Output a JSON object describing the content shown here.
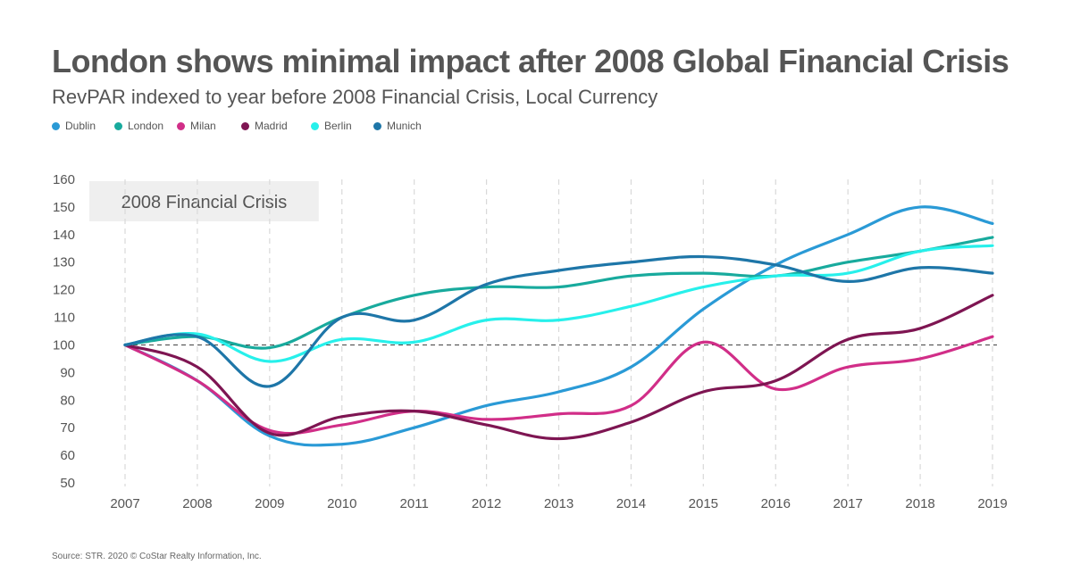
{
  "header": {
    "title": "London shows minimal impact after 2008 Global Financial Crisis",
    "subtitle": "RevPAR indexed to year before 2008 Financial Crisis, Local Currency"
  },
  "source": "Source: STR. 2020 © CoStar Realty Information, Inc.",
  "chart_data": {
    "type": "line",
    "title": "London shows minimal impact after 2008 Global Financial Crisis",
    "subtitle": "RevPAR indexed to year before 2008 Financial Crisis, Local Currency",
    "xlabel": "",
    "ylabel": "",
    "x": [
      "2007",
      "2008",
      "2009",
      "2010",
      "2011",
      "2012",
      "2013",
      "2014",
      "2015",
      "2016",
      "2017",
      "2018",
      "2019"
    ],
    "ylim": [
      50,
      160
    ],
    "yticks": [
      50,
      60,
      70,
      80,
      90,
      100,
      110,
      120,
      130,
      140,
      150,
      160
    ],
    "grid": "vertical dashed",
    "reference_line": 100,
    "legend_position": "top-left",
    "annotation": {
      "text": "2008 Financial Crisis",
      "x_start": "2007",
      "x_end": "2009"
    },
    "series": [
      {
        "name": "Dublin",
        "color": "#2a9ad6",
        "values": [
          100,
          87,
          67,
          64,
          70,
          78,
          83,
          92,
          113,
          129,
          140,
          150,
          144
        ]
      },
      {
        "name": "London",
        "color": "#18aa9d",
        "values": [
          100,
          103,
          99,
          110,
          118,
          121,
          121,
          125,
          126,
          125,
          130,
          134,
          139
        ]
      },
      {
        "name": "Milan",
        "color": "#d12e88",
        "values": [
          100,
          87,
          69,
          71,
          76,
          73,
          75,
          78,
          101,
          84,
          92,
          95,
          103
        ]
      },
      {
        "name": "Madrid",
        "color": "#7e1552",
        "values": [
          100,
          92,
          68,
          74,
          76,
          71,
          66,
          72,
          83,
          87,
          102,
          106,
          118
        ]
      },
      {
        "name": "Berlin",
        "color": "#27f0eb",
        "values": [
          100,
          104,
          94,
          102,
          101,
          109,
          109,
          114,
          121,
          125,
          126,
          134,
          136
        ]
      },
      {
        "name": "Munich",
        "color": "#1e76a8",
        "values": [
          100,
          103,
          85,
          110,
          109,
          122,
          127,
          130,
          132,
          129,
          123,
          128,
          126
        ]
      }
    ]
  }
}
